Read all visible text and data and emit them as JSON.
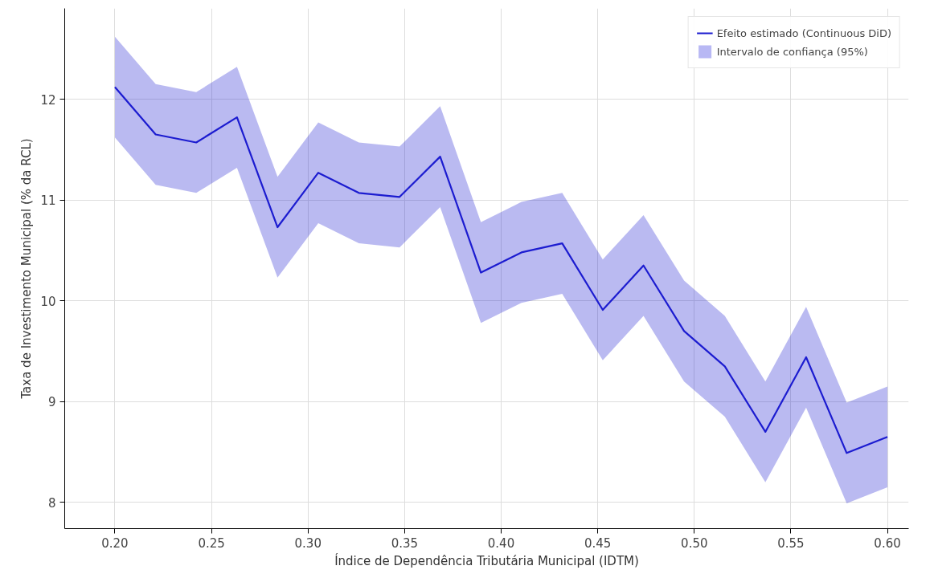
{
  "chart_data": {
    "type": "line",
    "xlabel": "Índice de Dependência Tributária Municipal (IDTM)",
    "ylabel": "Taxa de Investimento Municipal (% da RCL)",
    "x": [
      0.2,
      0.2211,
      0.2421,
      0.2632,
      0.2842,
      0.3053,
      0.3263,
      0.3474,
      0.3684,
      0.3895,
      0.4105,
      0.4316,
      0.4526,
      0.4737,
      0.4947,
      0.5158,
      0.5368,
      0.5579,
      0.5789,
      0.6
    ],
    "series": [
      {
        "name": "Efeito estimado (Continuous DiD)",
        "color": "#1c1cd0",
        "values": [
          12.12,
          11.65,
          11.57,
          11.82,
          10.73,
          11.27,
          11.07,
          11.03,
          11.43,
          10.28,
          10.48,
          10.57,
          9.91,
          10.35,
          9.7,
          9.35,
          8.7,
          9.44,
          8.49,
          8.65
        ],
        "lower": [
          11.62,
          11.15,
          11.07,
          11.32,
          10.23,
          10.77,
          10.57,
          10.53,
          10.93,
          9.78,
          9.98,
          10.07,
          9.41,
          9.85,
          9.2,
          8.85,
          8.2,
          8.94,
          7.99,
          8.15
        ],
        "upper": [
          12.62,
          12.15,
          12.07,
          12.32,
          11.23,
          11.77,
          11.57,
          11.53,
          11.93,
          10.78,
          10.98,
          11.07,
          10.41,
          10.85,
          10.2,
          9.85,
          9.2,
          9.94,
          8.99,
          9.15
        ]
      },
      {
        "name": "Intervalo de confiança (95%)",
        "type": "area",
        "color": "#b8b8f4",
        "values": [
          null,
          null,
          null,
          null,
          null,
          null,
          null,
          null,
          null,
          null,
          null,
          null,
          null,
          null,
          null,
          null,
          null,
          null,
          null,
          null
        ]
      }
    ],
    "xlim": [
      0.174,
      0.611
    ],
    "ylim": [
      7.74,
      12.9
    ],
    "xticks": [
      {
        "value": 0.2,
        "label": "0.20"
      },
      {
        "value": 0.25,
        "label": "0.25"
      },
      {
        "value": 0.3,
        "label": "0.30"
      },
      {
        "value": 0.35,
        "label": "0.35"
      },
      {
        "value": 0.4,
        "label": "0.40"
      },
      {
        "value": 0.45,
        "label": "0.45"
      },
      {
        "value": 0.5,
        "label": "0.50"
      },
      {
        "value": 0.55,
        "label": "0.55"
      },
      {
        "value": 0.6,
        "label": "0.60"
      }
    ],
    "yticks": [
      8,
      9,
      10,
      11,
      12
    ],
    "grid": true,
    "legend": "top right",
    "line_style": "solid",
    "marker": "none"
  }
}
